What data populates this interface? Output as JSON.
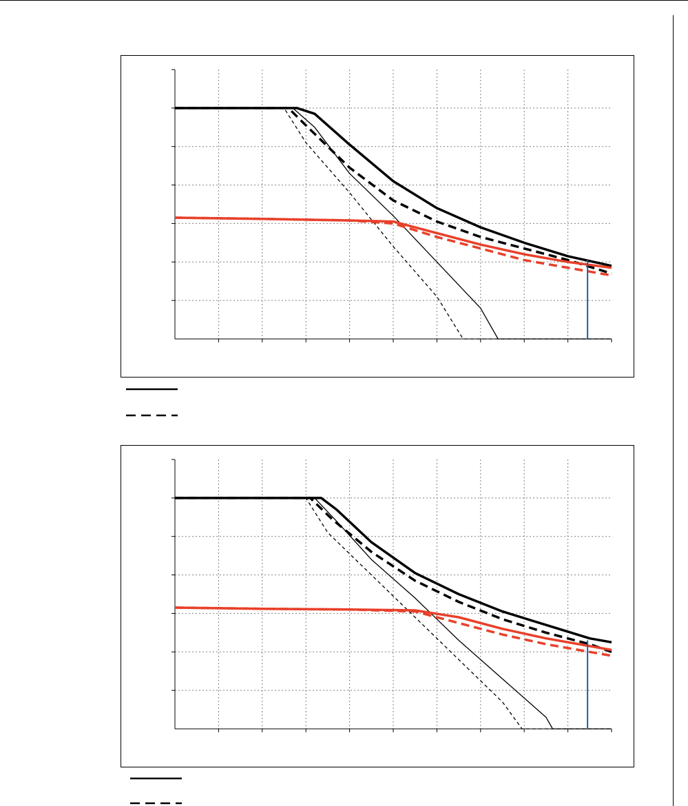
{
  "colors": {
    "background": "#ffffff",
    "frame": "#000000",
    "grid": "#808080",
    "black_series": "#000000",
    "red_series": "#e8402a",
    "marker_line": "#1f5fa0"
  },
  "chart_data": [
    {
      "type": "line",
      "title": "",
      "xlabel": "",
      "ylabel": "",
      "xlim": [
        0,
        10
      ],
      "ylim": [
        0,
        7
      ],
      "x_gridlines": [
        1,
        2,
        3,
        4,
        5,
        6,
        7,
        8,
        9
      ],
      "y_gridlines": [
        1,
        2,
        3,
        4,
        5,
        6
      ],
      "grid": "dotted",
      "tick_labels_visible": false,
      "series": [
        {
          "style": "thick-solid",
          "color": "black",
          "x": [
            0,
            2.8,
            3.2,
            4,
            5,
            6,
            7,
            8,
            9,
            10
          ],
          "y": [
            6,
            6,
            5.85,
            5.05,
            4.1,
            3.4,
            2.9,
            2.5,
            2.15,
            1.9
          ]
        },
        {
          "style": "thick-dashed",
          "color": "black",
          "x": [
            0,
            2.6,
            3,
            4,
            5,
            6,
            7,
            8,
            9,
            10
          ],
          "y": [
            6,
            6,
            5.55,
            4.45,
            3.6,
            3.05,
            2.65,
            2.35,
            2.05,
            1.7
          ]
        },
        {
          "style": "thin-solid",
          "color": "black",
          "x": [
            0,
            2.7,
            3.2,
            4,
            5,
            6,
            7,
            7.4,
            10
          ],
          "y": [
            6,
            6,
            5.5,
            4.3,
            3.2,
            2.0,
            0.8,
            0,
            0
          ]
        },
        {
          "style": "thin-dashed",
          "color": "black",
          "x": [
            0,
            2.5,
            3,
            4,
            5,
            6,
            6.6,
            10
          ],
          "y": [
            6,
            6,
            5.1,
            3.8,
            2.4,
            1.1,
            0,
            0
          ]
        },
        {
          "style": "thick-solid",
          "color": "red",
          "x": [
            0,
            2,
            4,
            5,
            6,
            7,
            8,
            9,
            10
          ],
          "y": [
            3.15,
            3.12,
            3.08,
            3.05,
            2.75,
            2.45,
            2.2,
            2.0,
            1.85
          ]
        },
        {
          "style": "thick-dashed",
          "color": "red",
          "x": [
            0,
            2,
            4,
            5,
            6,
            7,
            8,
            9,
            10
          ],
          "y": [
            3.15,
            3.12,
            3.08,
            3.0,
            2.65,
            2.35,
            2.05,
            1.85,
            1.65
          ]
        }
      ],
      "vertical_marker": {
        "x": 9.45,
        "y_top": 2.05
      }
    },
    {
      "type": "line",
      "title": "",
      "xlabel": "",
      "ylabel": "",
      "xlim": [
        0,
        10
      ],
      "ylim": [
        0,
        7
      ],
      "x_gridlines": [
        1,
        2,
        3,
        4,
        5,
        6,
        7,
        8,
        9
      ],
      "y_gridlines": [
        1,
        2,
        3,
        4,
        5,
        6
      ],
      "grid": "dotted",
      "tick_labels_visible": false,
      "series": [
        {
          "style": "thick-solid",
          "color": "black",
          "x": [
            0,
            3.35,
            3.7,
            4.5,
            5.5,
            6.5,
            7.5,
            8.5,
            9.5,
            10
          ],
          "y": [
            6,
            6,
            5.7,
            4.85,
            4.05,
            3.5,
            3.05,
            2.7,
            2.35,
            2.25
          ]
        },
        {
          "style": "thick-dashed",
          "color": "black",
          "x": [
            0,
            3.1,
            3.6,
            4.5,
            5.5,
            6.5,
            7.5,
            8.5,
            9.5,
            10
          ],
          "y": [
            6,
            6,
            5.45,
            4.6,
            3.85,
            3.3,
            2.85,
            2.5,
            2.2,
            2.0
          ]
        },
        {
          "style": "thin-solid",
          "color": "black",
          "x": [
            0,
            3.2,
            3.7,
            4.5,
            5.5,
            6.5,
            7.5,
            8.5,
            8.65,
            10
          ],
          "y": [
            6,
            6,
            5.4,
            4.4,
            3.4,
            2.3,
            1.3,
            0.3,
            0,
            0
          ]
        },
        {
          "style": "thin-dashed",
          "color": "black",
          "x": [
            0,
            3.0,
            3.5,
            4.5,
            5.5,
            6.5,
            7.5,
            7.95,
            10
          ],
          "y": [
            6,
            6,
            5.1,
            4.0,
            2.9,
            1.8,
            0.7,
            0,
            0
          ]
        },
        {
          "style": "thick-solid",
          "color": "red",
          "x": [
            0,
            2,
            4,
            5.5,
            6.5,
            7.5,
            8.5,
            9.5,
            10
          ],
          "y": [
            3.15,
            3.12,
            3.1,
            3.08,
            2.9,
            2.6,
            2.35,
            2.15,
            2.05
          ]
        },
        {
          "style": "thick-dashed",
          "color": "red",
          "x": [
            0,
            2,
            4,
            5.5,
            6.5,
            7.5,
            8.5,
            9.5,
            10
          ],
          "y": [
            3.15,
            3.12,
            3.1,
            3.05,
            2.75,
            2.45,
            2.2,
            2.0,
            1.9
          ]
        }
      ],
      "vertical_marker": {
        "x": 9.45,
        "y_top": 2.3
      }
    }
  ],
  "legends": [
    {
      "items": [
        {
          "style": "solid"
        },
        {
          "style": "dashed"
        }
      ]
    },
    {
      "items": [
        {
          "style": "solid"
        },
        {
          "style": "dashed"
        }
      ]
    }
  ]
}
